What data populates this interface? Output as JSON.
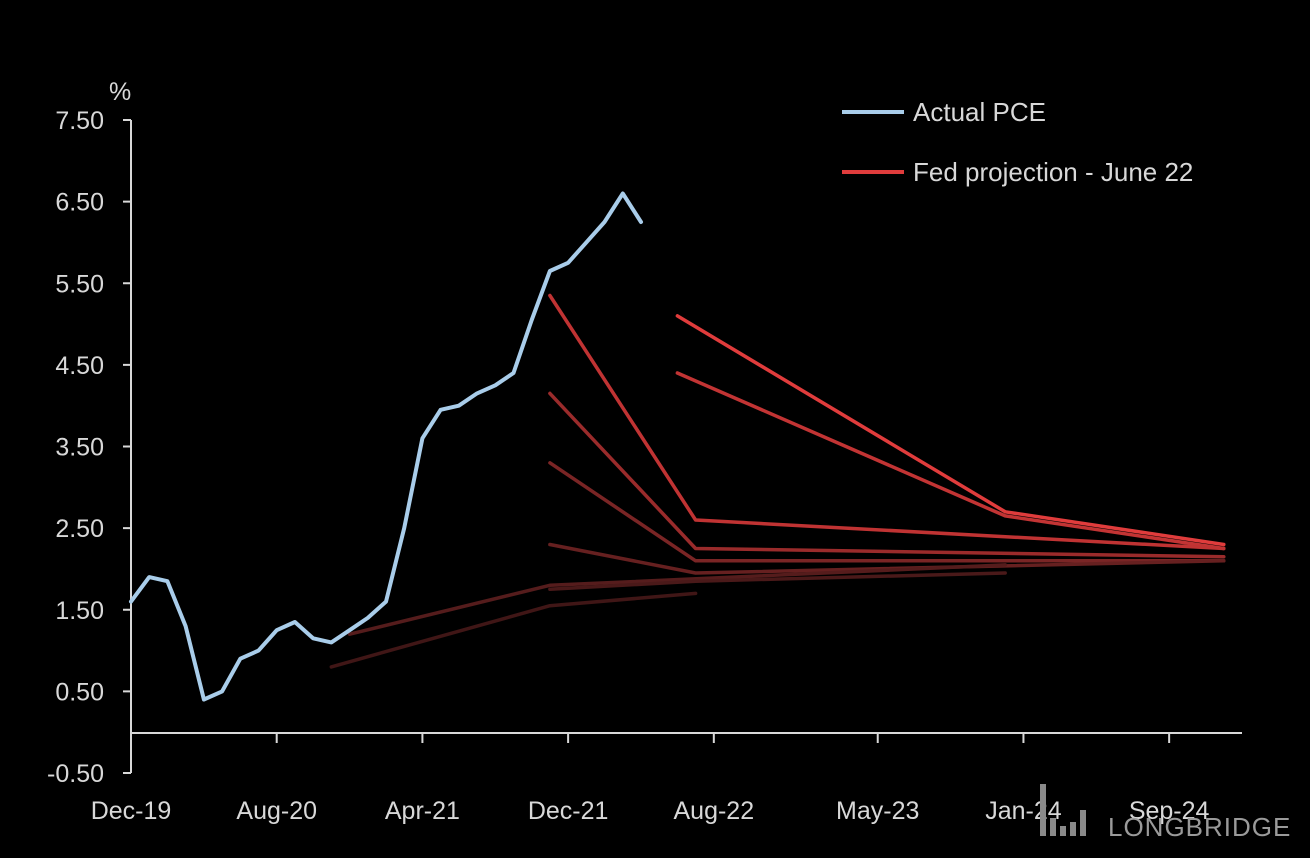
{
  "chart_data": {
    "type": "line",
    "title": "",
    "xlabel": "",
    "ylabel": "%",
    "ylim": [
      -0.5,
      7.5
    ],
    "yticks": [
      7.5,
      6.5,
      5.5,
      4.5,
      3.5,
      2.5,
      1.5,
      0.5,
      -0.5
    ],
    "ytick_labels": [
      "7.50",
      "6.50",
      "5.50",
      "4.50",
      "3.50",
      "2.50",
      "1.50",
      "0.50",
      "-0.50"
    ],
    "xlim": [
      "2019-12",
      "2025-01"
    ],
    "xticks": [
      "2019-12",
      "2020-08",
      "2021-04",
      "2021-12",
      "2022-08",
      "2023-05",
      "2024-01",
      "2024-09"
    ],
    "xtick_labels": [
      "Dec-19",
      "Aug-20",
      "Apr-21",
      "Dec-21",
      "Aug-22",
      "May-23",
      "Jan-24",
      "Sep-24"
    ],
    "grid": false,
    "legend_position": "top-right",
    "series": [
      {
        "name": "Actual PCE",
        "color": "#a9cdea",
        "points": [
          {
            "x": "2019-12",
            "y": 1.6
          },
          {
            "x": "2020-01",
            "y": 1.9
          },
          {
            "x": "2020-02",
            "y": 1.85
          },
          {
            "x": "2020-03",
            "y": 1.3
          },
          {
            "x": "2020-04",
            "y": 0.4
          },
          {
            "x": "2020-05",
            "y": 0.5
          },
          {
            "x": "2020-06",
            "y": 0.9
          },
          {
            "x": "2020-07",
            "y": 1.0
          },
          {
            "x": "2020-08",
            "y": 1.25
          },
          {
            "x": "2020-09",
            "y": 1.35
          },
          {
            "x": "2020-10",
            "y": 1.15
          },
          {
            "x": "2020-11",
            "y": 1.1
          },
          {
            "x": "2020-12",
            "y": 1.25
          },
          {
            "x": "2021-01",
            "y": 1.4
          },
          {
            "x": "2021-02",
            "y": 1.6
          },
          {
            "x": "2021-03",
            "y": 2.5
          },
          {
            "x": "2021-04",
            "y": 3.6
          },
          {
            "x": "2021-05",
            "y": 3.95
          },
          {
            "x": "2021-06",
            "y": 4.0
          },
          {
            "x": "2021-07",
            "y": 4.15
          },
          {
            "x": "2021-08",
            "y": 4.25
          },
          {
            "x": "2021-09",
            "y": 4.4
          },
          {
            "x": "2021-10",
            "y": 5.05
          },
          {
            "x": "2021-11",
            "y": 5.65
          },
          {
            "x": "2021-12",
            "y": 5.75
          },
          {
            "x": "2022-01",
            "y": 6.0
          },
          {
            "x": "2022-02",
            "y": 6.25
          },
          {
            "x": "2022-03",
            "y": 6.6
          },
          {
            "x": "2022-04",
            "y": 6.25
          }
        ]
      },
      {
        "name": "Fed projection - June 22",
        "color": "#e03c3c",
        "points": [
          {
            "x": "2022-06",
            "y": 5.1
          },
          {
            "x": "2023-12",
            "y": 2.7
          },
          {
            "x": "2024-12",
            "y": 2.3
          }
        ]
      },
      {
        "color": "#c23434",
        "points": [
          {
            "x": "2022-06",
            "y": 4.4
          },
          {
            "x": "2023-12",
            "y": 2.65
          },
          {
            "x": "2024-12",
            "y": 2.25
          }
        ]
      },
      {
        "color": "#c03333",
        "points": [
          {
            "x": "2021-11",
            "y": 5.35
          },
          {
            "x": "2022-07",
            "y": 2.6
          },
          {
            "x": "2024-12",
            "y": 2.25
          }
        ]
      },
      {
        "color": "#9a2b2b",
        "points": [
          {
            "x": "2021-11",
            "y": 4.15
          },
          {
            "x": "2022-07",
            "y": 2.25
          },
          {
            "x": "2024-12",
            "y": 2.15
          }
        ]
      },
      {
        "color": "#7a2525",
        "points": [
          {
            "x": "2021-11",
            "y": 3.3
          },
          {
            "x": "2022-07",
            "y": 2.1
          },
          {
            "x": "2024-12",
            "y": 2.1
          }
        ]
      },
      {
        "color": "#662020",
        "points": [
          {
            "x": "2021-11",
            "y": 2.3
          },
          {
            "x": "2022-07",
            "y": 1.95
          },
          {
            "x": "2024-12",
            "y": 2.1
          }
        ]
      },
      {
        "color": "#551c1c",
        "points": [
          {
            "x": "2020-12",
            "y": 1.2
          },
          {
            "x": "2021-11",
            "y": 1.8
          },
          {
            "x": "2023-12",
            "y": 2.05
          }
        ]
      },
      {
        "color": "#4a1919",
        "points": [
          {
            "x": "2021-11",
            "y": 1.75
          },
          {
            "x": "2022-07",
            "y": 1.85
          },
          {
            "x": "2023-12",
            "y": 1.95
          }
        ]
      },
      {
        "color": "#401616",
        "points": [
          {
            "x": "2020-11",
            "y": 0.8
          },
          {
            "x": "2021-11",
            "y": 1.55
          },
          {
            "x": "2022-07",
            "y": 1.7
          }
        ]
      }
    ]
  },
  "watermark": {
    "text": "LONGBRIDGE"
  }
}
